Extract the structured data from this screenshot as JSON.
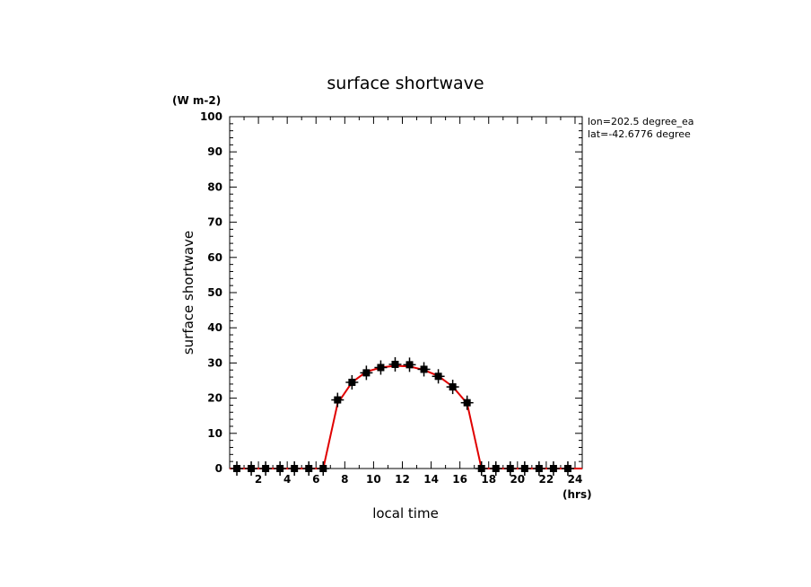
{
  "chart_data": {
    "type": "line",
    "title": "surface shortwave",
    "xlabel": "local time",
    "ylabel": "surface shortwave",
    "x_units": "(hrs)",
    "y_units": "(W m-2)",
    "annotations": [
      "lon=202.5 degree_ea",
      "lat=-42.6776 degree"
    ],
    "xlim": [
      0,
      24.5
    ],
    "ylim": [
      0,
      100
    ],
    "x_ticks": [
      2,
      4,
      6,
      8,
      10,
      12,
      14,
      16,
      18,
      20,
      22,
      24
    ],
    "y_ticks": [
      0,
      10,
      20,
      30,
      40,
      50,
      60,
      70,
      80,
      90,
      100
    ],
    "grid": false,
    "colors": {
      "line": "#e00000",
      "markers": "#000000"
    },
    "series": [
      {
        "style": "line",
        "x": [
          0,
          0.5,
          1.5,
          2.5,
          3.5,
          4.5,
          5.5,
          6.5,
          7.5,
          8.5,
          9.5,
          10.5,
          11.5,
          12.5,
          13.5,
          14.5,
          15.5,
          16.5,
          17.5,
          18.5,
          19.5,
          20.5,
          21.5,
          22.5,
          23.5,
          24.5
        ],
        "values": [
          0,
          0,
          0,
          0,
          0,
          0,
          0,
          0,
          18.5,
          24.5,
          27.5,
          28.7,
          29.2,
          29.0,
          28.0,
          26.3,
          23.3,
          18.5,
          0,
          0,
          0,
          0,
          0,
          0,
          0,
          0
        ]
      },
      {
        "style": "markers",
        "x": [
          0.5,
          1.5,
          2.5,
          3.5,
          4.5,
          5.5,
          6.5,
          7.5,
          8.5,
          9.5,
          10.5,
          11.5,
          12.5,
          13.5,
          14.5,
          15.5,
          16.5,
          17.5,
          18.5,
          19.5,
          20.5,
          21.5,
          22.5,
          23.5
        ],
        "values": [
          0,
          0,
          0,
          0,
          0,
          0,
          0,
          19.5,
          24.5,
          27.2,
          28.7,
          29.6,
          29.5,
          28.2,
          26.2,
          23.2,
          18.7,
          0,
          0,
          0,
          0,
          0,
          0,
          0
        ]
      }
    ]
  }
}
